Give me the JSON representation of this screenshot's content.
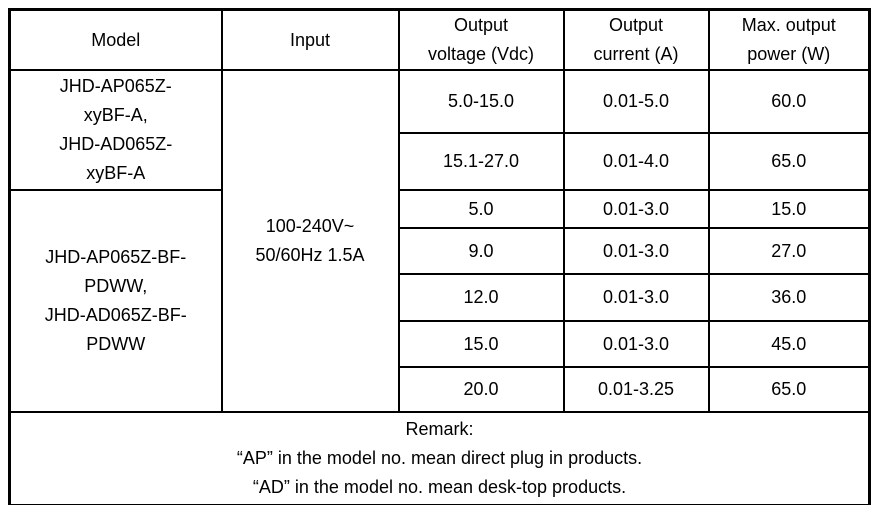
{
  "table": {
    "columns": {
      "model": "Model",
      "input": "Input",
      "voltage": "Output\nvoltage (Vdc)",
      "current": "Output\ncurrent (A)",
      "power": "Max. output\npower (W)"
    },
    "model_groups": [
      {
        "model": "JHD-AP065Z-\nxyBF-A,\nJHD-AD065Z-\nxyBF-A"
      },
      {
        "model": "JHD-AP065Z-BF-\nPDWW,\nJHD-AD065Z-BF-\nPDWW"
      }
    ],
    "input_value": "100-240V~\n50/60Hz 1.5A",
    "rows": [
      {
        "voltage": "5.0-15.0",
        "current": "0.01-5.0",
        "power": "60.0"
      },
      {
        "voltage": "15.1-27.0",
        "current": "0.01-4.0",
        "power": "65.0"
      },
      {
        "voltage": "5.0",
        "current": "0.01-3.0",
        "power": "15.0"
      },
      {
        "voltage": "9.0",
        "current": "0.01-3.0",
        "power": "27.0"
      },
      {
        "voltage": "12.0",
        "current": "0.01-3.0",
        "power": "36.0"
      },
      {
        "voltage": "15.0",
        "current": "0.01-3.0",
        "power": "45.0"
      },
      {
        "voltage": "20.0",
        "current": "0.01-3.25",
        "power": "65.0"
      }
    ]
  },
  "remark": {
    "title": "Remark:",
    "lines": [
      "“AP” in the model no. mean direct plug in products.",
      "“AD” in the model no. mean desk-top products."
    ]
  },
  "colors": {
    "border": "#000000",
    "text": "#000000",
    "background": "#ffffff"
  }
}
